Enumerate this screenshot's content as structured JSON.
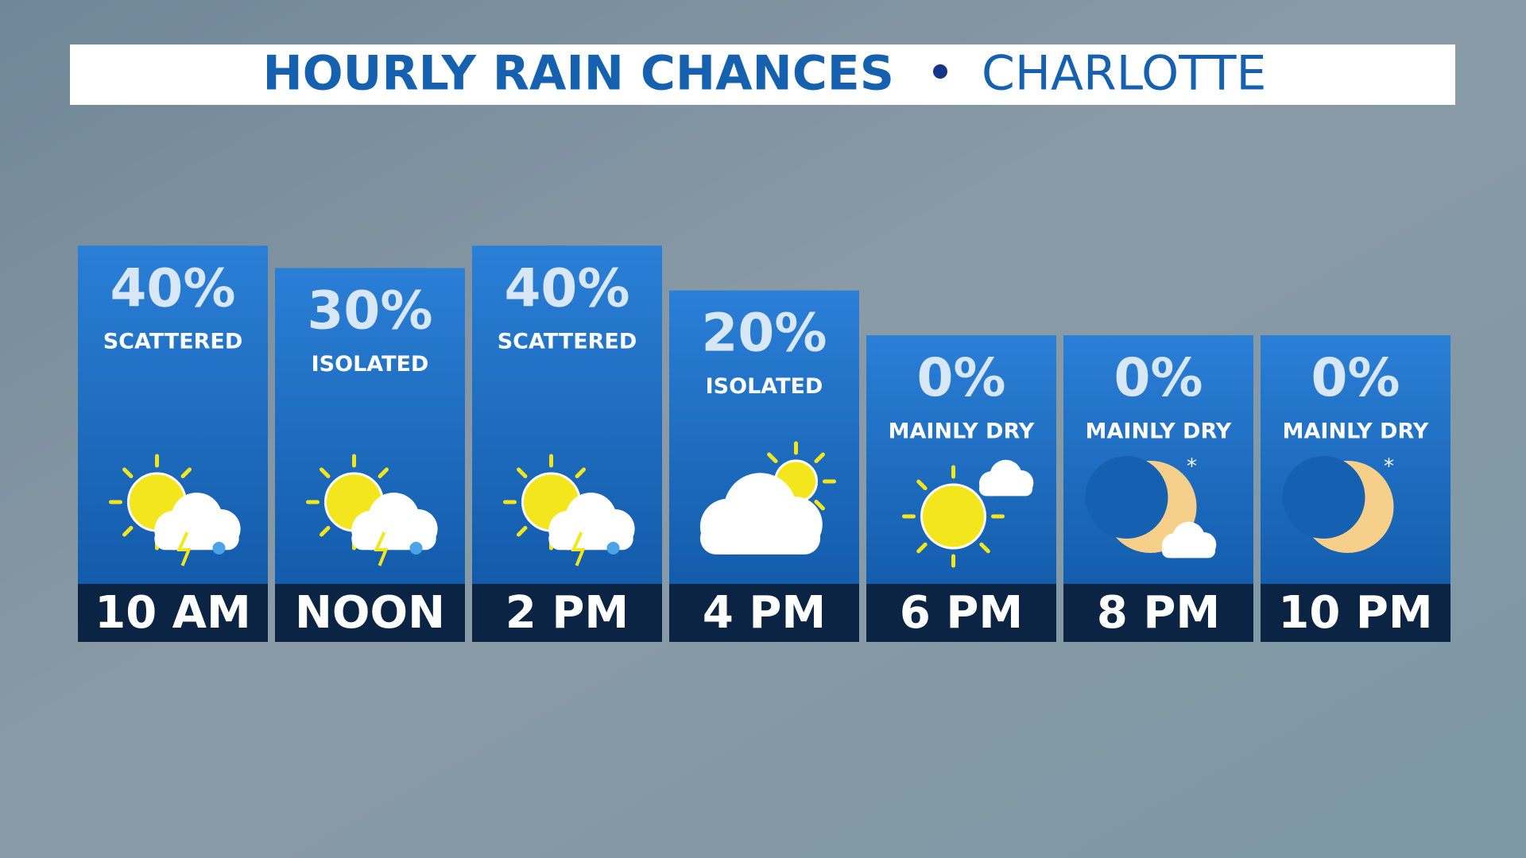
{
  "chart_data": {
    "type": "bar",
    "title": "HOURLY RAIN CHANCES",
    "subtitle": "CHARLOTTE",
    "categories": [
      "10 AM",
      "NOON",
      "2 PM",
      "4 PM",
      "6 PM",
      "8 PM",
      "10 PM"
    ],
    "values": [
      40,
      30,
      40,
      20,
      0,
      0,
      0
    ],
    "value_labels": [
      "40%",
      "30%",
      "40%",
      "20%",
      "0%",
      "0%",
      "0%"
    ],
    "descriptions": [
      "SCATTERED",
      "ISOLATED",
      "SCATTERED",
      "ISOLATED",
      "MAINLY DRY",
      "MAINLY DRY",
      "MAINLY DRY"
    ],
    "color": "#1766bd"
  }
}
